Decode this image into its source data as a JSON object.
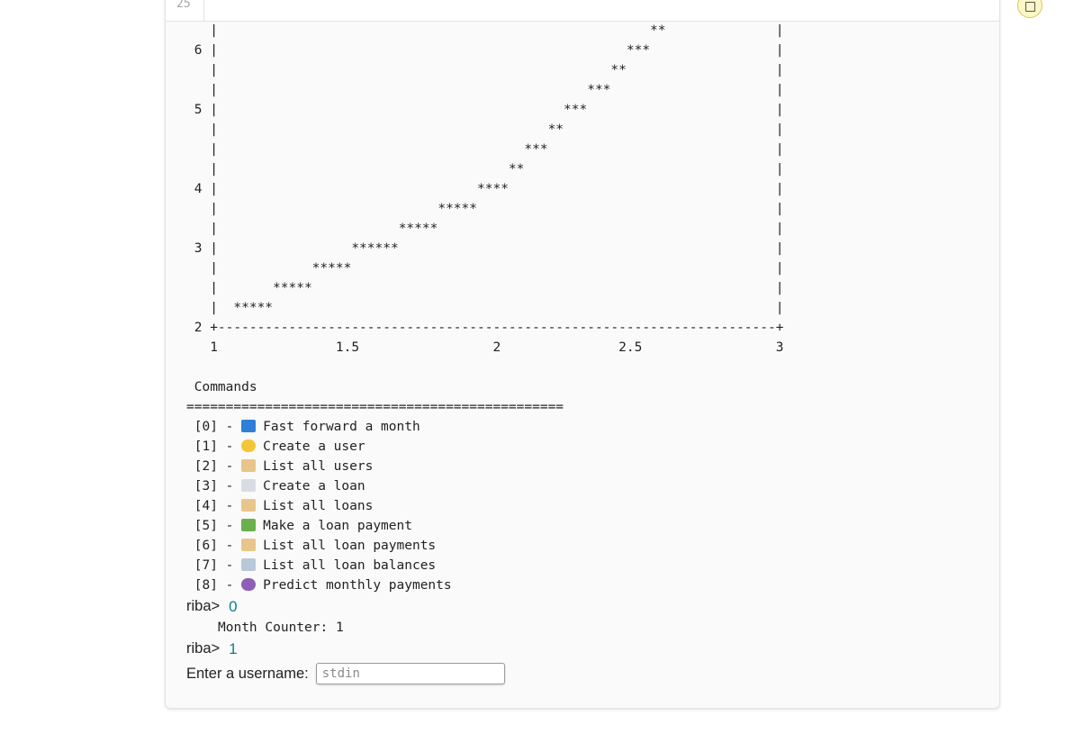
{
  "cell": {
    "line_number": "25"
  },
  "ascii_chart": {
    "lines": [
      "   |                                                       **              |",
      " 6 |                                                    ***                |",
      "   |                                                  **                   |",
      "   |                                               ***                     |",
      " 5 |                                            ***                        |",
      "   |                                          **                           |",
      "   |                                       ***                             |",
      "   |                                     **                                |",
      " 4 |                                 ****                                  |",
      "   |                            *****                                      |",
      "   |                       *****                                           |",
      " 3 |                 ******                                                |",
      "   |            *****                                                      |",
      "   |       *****                                                           |",
      "   |  *****                                                                |",
      " 2 +-----------------------------------------------------------------------+",
      "   1               1.5                 2               2.5                 3"
    ]
  },
  "menu": {
    "title": " Commands",
    "separator": "================================================",
    "items": [
      {
        "num": " [0] - ",
        "icon": "fast-forward-icon",
        "label": "Fast forward a month"
      },
      {
        "num": " [1] - ",
        "icon": "hatching-chick-icon",
        "label": "Create a user"
      },
      {
        "num": " [2] - ",
        "icon": "scroll-icon",
        "label": "List all users"
      },
      {
        "num": " [3] - ",
        "icon": "page-facing-up-icon",
        "label": "Create a loan"
      },
      {
        "num": " [4] - ",
        "icon": "scroll-icon",
        "label": "List all loans"
      },
      {
        "num": " [5] - ",
        "icon": "dollar-banknote-icon",
        "label": "Make a loan payment"
      },
      {
        "num": " [6] - ",
        "icon": "scroll-icon",
        "label": "List all loan payments"
      },
      {
        "num": " [7] - ",
        "icon": "bar-chart-icon",
        "label": "List all loan balances"
      },
      {
        "num": " [8] - ",
        "icon": "crystal-ball-icon",
        "label": "Predict monthly payments"
      }
    ]
  },
  "session": {
    "prompt_label": "riba>",
    "first_input": "0",
    "month_counter": "Month Counter: 1",
    "second_input": "1",
    "username_label": "Enter a username:",
    "stdin_placeholder": "stdin"
  },
  "colors": {
    "input_value": "#0f7c8c",
    "stop_button_fill": "#fdf6c6"
  }
}
